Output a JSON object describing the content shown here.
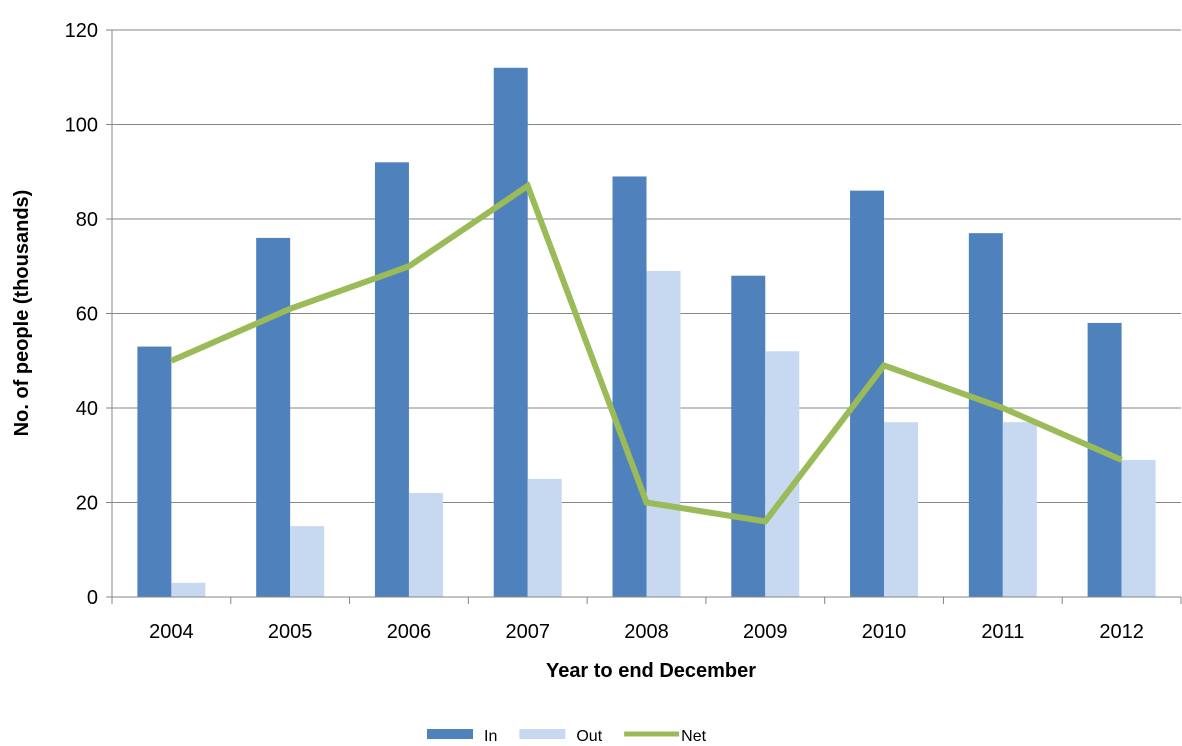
{
  "chart_data": {
    "type": "bar",
    "title": "",
    "xlabel": "Year to end December",
    "ylabel": "No. of people (thousands)",
    "ylim": [
      0,
      120
    ],
    "yticks": [
      0,
      20,
      40,
      60,
      80,
      100,
      120
    ],
    "categories": [
      "2004",
      "2005",
      "2006",
      "2007",
      "2008",
      "2009",
      "2010",
      "2011",
      "2012"
    ],
    "series": [
      {
        "name": "In",
        "kind": "bar",
        "color": "#4F81BD",
        "values": [
          53,
          76,
          92,
          112,
          89,
          68,
          86,
          77,
          58
        ]
      },
      {
        "name": "Out",
        "kind": "bar",
        "color": "#C6D9F1",
        "values": [
          3,
          15,
          22,
          25,
          69,
          52,
          37,
          37,
          29
        ]
      },
      {
        "name": "Net",
        "kind": "line",
        "color": "#9BBB59",
        "values": [
          50,
          61,
          70,
          87,
          20,
          16,
          49,
          40,
          29
        ]
      }
    ],
    "grid": true,
    "legend_position": "bottom"
  }
}
